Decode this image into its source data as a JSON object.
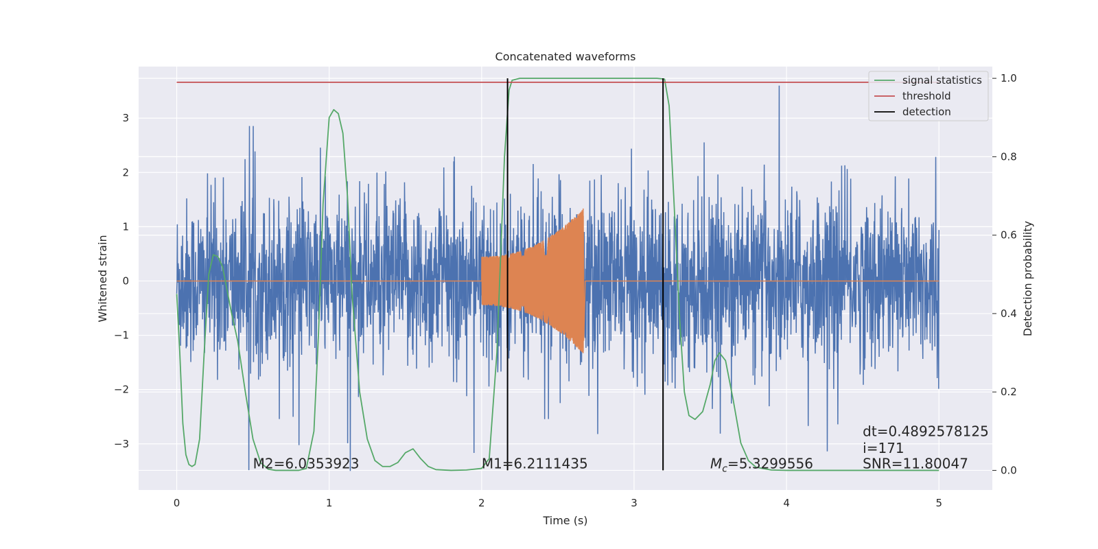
{
  "chart_data": {
    "type": "line",
    "title": "Concatenated waveforms",
    "xlabel": "Time (s)",
    "ylabel": "Whitened strain",
    "ylabel_right": "Detection probability",
    "xlim": [
      -0.25,
      5.35
    ],
    "ylim": [
      -3.85,
      3.95
    ],
    "ylim_right": [
      -0.05,
      1.03
    ],
    "x_ticks": [
      0,
      1,
      2,
      3,
      4,
      5
    ],
    "y_ticks": [
      -3,
      -2,
      -1,
      0,
      1,
      2,
      3
    ],
    "y_ticks_right": [
      0.0,
      0.2,
      0.4,
      0.6,
      0.8,
      1.0
    ],
    "y_tick_labels": [
      "−3",
      "−2",
      "−1",
      "0",
      "1",
      "2",
      "3"
    ],
    "y_tick_labels_right": [
      "0.0",
      "0.2",
      "0.4",
      "0.6",
      "0.8",
      "1.0"
    ],
    "grid": true,
    "legend_position": "top-right",
    "series": [
      {
        "name": "",
        "axis": "left",
        "color": "#4c72b0",
        "kind": "noise",
        "x_range": [
          0,
          5
        ],
        "sigma": 0.75,
        "peak_max": 3.6,
        "peak_min": -3.5
      },
      {
        "name": "",
        "axis": "left",
        "color": "#dd8452",
        "kind": "chirp",
        "x_range": [
          2.0,
          2.67
        ],
        "amp_start": 0.45,
        "amp_end": 1.35
      },
      {
        "name": "signal statistics",
        "axis": "right",
        "color": "#55a868",
        "x": [
          0.0,
          0.02,
          0.04,
          0.06,
          0.08,
          0.1,
          0.12,
          0.15,
          0.18,
          0.21,
          0.24,
          0.27,
          0.3,
          0.33,
          0.36,
          0.4,
          0.45,
          0.5,
          0.55,
          0.6,
          0.65,
          0.7,
          0.8,
          0.85,
          0.9,
          0.93,
          0.96,
          1.0,
          1.03,
          1.06,
          1.09,
          1.12,
          1.15,
          1.2,
          1.25,
          1.3,
          1.35,
          1.4,
          1.45,
          1.5,
          1.55,
          1.6,
          1.65,
          1.7,
          1.8,
          1.9,
          2.0,
          2.05,
          2.1,
          2.15,
          2.18,
          2.2,
          2.25,
          2.5,
          2.8,
          3.0,
          3.15,
          3.2,
          3.23,
          3.26,
          3.3,
          3.33,
          3.36,
          3.4,
          3.45,
          3.5,
          3.53,
          3.56,
          3.6,
          3.65,
          3.7,
          3.75,
          3.8,
          3.9,
          4.0,
          4.5,
          5.0
        ],
        "y": [
          0.45,
          0.3,
          0.12,
          0.04,
          0.015,
          0.01,
          0.015,
          0.08,
          0.3,
          0.5,
          0.55,
          0.545,
          0.52,
          0.46,
          0.4,
          0.33,
          0.2,
          0.08,
          0.02,
          0.003,
          0.0,
          0.0,
          0.0,
          0.005,
          0.1,
          0.35,
          0.68,
          0.9,
          0.92,
          0.91,
          0.86,
          0.7,
          0.45,
          0.2,
          0.08,
          0.025,
          0.01,
          0.01,
          0.02,
          0.045,
          0.055,
          0.03,
          0.01,
          0.002,
          0.0,
          0.001,
          0.005,
          0.03,
          0.3,
          0.8,
          0.97,
          0.995,
          1.0,
          1.0,
          1.0,
          1.0,
          1.0,
          0.998,
          0.93,
          0.7,
          0.38,
          0.2,
          0.14,
          0.13,
          0.15,
          0.22,
          0.28,
          0.3,
          0.28,
          0.18,
          0.07,
          0.025,
          0.008,
          0.001,
          0.0,
          0.0,
          0.0
        ]
      },
      {
        "name": "threshold",
        "axis": "right",
        "color": "#c44e52",
        "x": [
          0,
          5
        ],
        "y": [
          0.99,
          0.99
        ]
      },
      {
        "name": "detection",
        "axis": "right",
        "color": "#000000",
        "kind": "vlines",
        "x": [
          2.17,
          3.19
        ],
        "y_range": [
          0.0,
          1.0
        ]
      }
    ],
    "annotations": [
      {
        "text": "M2=6.0353923",
        "x": 0.5,
        "y": -3.45
      },
      {
        "text": "M1=6.2111435",
        "x": 2.0,
        "y": -3.45
      },
      {
        "text": "M_c=5.3299556",
        "x": 3.5,
        "y": -3.45
      },
      {
        "text": "dt=0.4892578125",
        "x": 4.5,
        "y": -2.86
      },
      {
        "text": " i=171",
        "x": 4.5,
        "y": -3.17
      },
      {
        "text": "SNR=11.80047",
        "x": 4.5,
        "y": -3.45
      }
    ]
  }
}
